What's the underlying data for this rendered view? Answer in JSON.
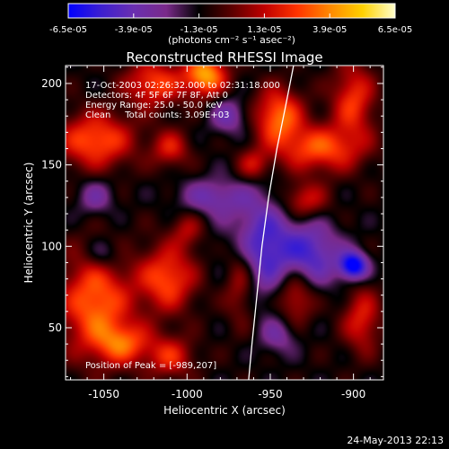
{
  "chart_data": {
    "type": "heatmap",
    "title": "Reconstructed RHESSI Image",
    "xlabel": "Heliocentric X (arcsec)",
    "ylabel": "Heliocentric Y (arcsec)",
    "xlim": [
      -1073,
      -882
    ],
    "ylim": [
      18,
      211
    ],
    "x_ticks": [
      -1050,
      -1000,
      -950,
      -900
    ],
    "x_tick_labels": [
      "-1050",
      "-1000",
      "-950",
      "-900"
    ],
    "y_ticks": [
      50,
      100,
      150,
      200
    ],
    "y_tick_labels": [
      "50",
      "100",
      "150",
      "200"
    ],
    "colorbar": {
      "range": [
        -6.5e-05,
        6.5e-05
      ],
      "ticks": [
        -6.5e-05,
        -3.9e-05,
        -1.3e-05,
        1.3e-05,
        3.9e-05,
        6.5e-05
      ],
      "tick_labels": [
        "-6.5e-05",
        "-3.9e-05",
        "-1.3e-05",
        "1.3e-05",
        "3.9e-05",
        "6.5e-05"
      ],
      "unit_label": "(photons cm⁻² s⁻¹ asec⁻²)",
      "colormap": [
        "#0000ff",
        "#3c1fd0",
        "#6a2fb0",
        "#7a2a8a",
        "#000000",
        "#5a0000",
        "#c00000",
        "#ff3300",
        "#ff8800",
        "#ffd000",
        "#ffffcc"
      ]
    },
    "annotations": [
      "17-Oct-2003 02:26:32.000 to 02:31:18.000",
      "Detectors: 4F 5F 6F 7F 8F, Att 0",
      "Energy Range: 25.0 - 50.0 keV",
      "Clean     Total counts: 3.09E+03",
      "Position of Peak = [-989,207]"
    ],
    "peak_position": [
      -989,
      207
    ],
    "limb": [
      [
        -963,
        18
      ],
      [
        -961,
        40
      ],
      [
        -958,
        70
      ],
      [
        -955,
        100
      ],
      [
        -951,
        130
      ],
      [
        -946,
        160
      ],
      [
        -941,
        185
      ],
      [
        -936,
        211
      ]
    ],
    "emission_sources": [
      {
        "x": -1055,
        "y": 65,
        "sx": 15,
        "sy": 22,
        "v": 4.5e-05
      },
      {
        "x": -1012,
        "y": 80,
        "sx": 12,
        "sy": 14,
        "v": 4e-05
      },
      {
        "x": -968,
        "y": 80,
        "sx": 7,
        "sy": 18,
        "v": 3e-05
      },
      {
        "x": -1038,
        "y": 40,
        "sx": 12,
        "sy": 9,
        "v": 3.5e-05
      },
      {
        "x": -1010,
        "y": 32,
        "sx": 10,
        "sy": 9,
        "v": 3e-05
      },
      {
        "x": -1055,
        "y": 165,
        "sx": 16,
        "sy": 12,
        "v": 4.2e-05
      },
      {
        "x": -1020,
        "y": 200,
        "sx": 12,
        "sy": 10,
        "v": 3.8e-05
      },
      {
        "x": -989,
        "y": 205,
        "sx": 9,
        "sy": 9,
        "v": 5.5e-05
      },
      {
        "x": -1010,
        "y": 160,
        "sx": 8,
        "sy": 8,
        "v": 2.8e-05
      },
      {
        "x": -945,
        "y": 180,
        "sx": 10,
        "sy": 12,
        "v": 4.5e-05
      },
      {
        "x": -920,
        "y": 160,
        "sx": 18,
        "sy": 10,
        "v": 4e-05
      },
      {
        "x": -900,
        "y": 190,
        "sx": 9,
        "sy": 16,
        "v": 3.5e-05
      },
      {
        "x": -930,
        "y": 128,
        "sx": 10,
        "sy": 8,
        "v": 3e-05
      },
      {
        "x": -935,
        "y": 70,
        "sx": 8,
        "sy": 12,
        "v": 3.2e-05
      },
      {
        "x": -895,
        "y": 55,
        "sx": 8,
        "sy": 14,
        "v": 3e-05
      },
      {
        "x": -960,
        "y": 150,
        "sx": 7,
        "sy": 7,
        "v": 2.5e-05
      },
      {
        "x": -1000,
        "y": 110,
        "sx": 7,
        "sy": 8,
        "v": 2e-05
      },
      {
        "x": -1050,
        "y": 95,
        "sx": 8,
        "sy": 7,
        "v": -2e-05
      },
      {
        "x": -985,
        "y": 130,
        "sx": 14,
        "sy": 8,
        "v": -2.5e-05
      },
      {
        "x": -955,
        "y": 100,
        "sx": 14,
        "sy": 22,
        "v": -4e-05
      },
      {
        "x": -925,
        "y": 95,
        "sx": 12,
        "sy": 14,
        "v": -3.5e-05
      },
      {
        "x": -900,
        "y": 88,
        "sx": 6,
        "sy": 6,
        "v": -6e-05
      },
      {
        "x": -975,
        "y": 180,
        "sx": 8,
        "sy": 8,
        "v": -2.5e-05
      },
      {
        "x": -945,
        "y": 45,
        "sx": 8,
        "sy": 8,
        "v": -2e-05
      },
      {
        "x": -1055,
        "y": 130,
        "sx": 8,
        "sy": 8,
        "v": -2e-05
      }
    ]
  },
  "footer": {
    "date": "24-May-2013 22:13"
  }
}
